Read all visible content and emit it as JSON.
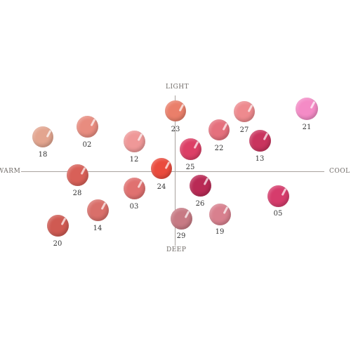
{
  "axes": {
    "top": "LIGHT",
    "bottom": "DEEP",
    "left": "WARM",
    "right": "COOL"
  },
  "shades": [
    {
      "id": "18",
      "color": "#e3a58f"
    },
    {
      "id": "02",
      "color": "#e88c7f"
    },
    {
      "id": "12",
      "color": "#ef9898"
    },
    {
      "id": "23",
      "color": "#ea7f6a"
    },
    {
      "id": "22",
      "color": "#e5707d"
    },
    {
      "id": "27",
      "color": "#ee8a8e"
    },
    {
      "id": "21",
      "color": "#f48bc6"
    },
    {
      "id": "13",
      "color": "#c9345e"
    },
    {
      "id": "25",
      "color": "#dc3f66"
    },
    {
      "id": "28",
      "color": "#d86058"
    },
    {
      "id": "24",
      "color": "#ea4b3d"
    },
    {
      "id": "03",
      "color": "#e07170"
    },
    {
      "id": "26",
      "color": "#b92a55"
    },
    {
      "id": "05",
      "color": "#d63c6c"
    },
    {
      "id": "14",
      "color": "#d96f6a"
    },
    {
      "id": "20",
      "color": "#cf5a52"
    },
    {
      "id": "29",
      "color": "#c77a84"
    },
    {
      "id": "19",
      "color": "#d8808e"
    }
  ]
}
